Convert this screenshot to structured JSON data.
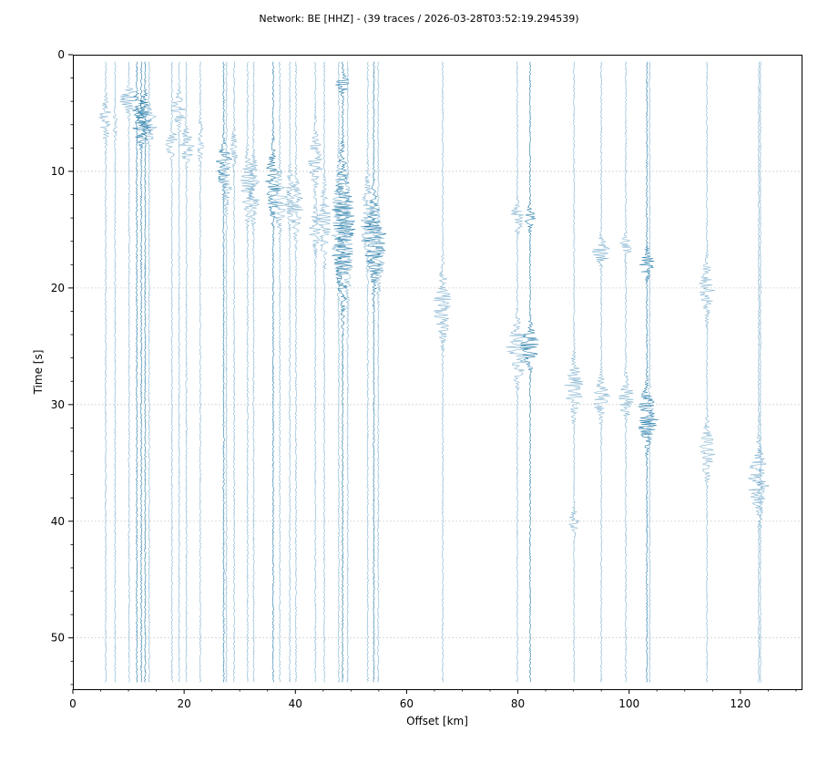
{
  "chart_data": {
    "type": "line",
    "title": "Network: BE [HHZ] - (39 traces / 2026-03-28T03:52:19.294539)",
    "xlabel": "Offset [km]",
    "ylabel": "Time [s]",
    "xlim": [
      0,
      131
    ],
    "ylim": [
      0,
      54.4
    ],
    "y_inverted": true,
    "grid": "horizontal",
    "x_ticks": [
      "0",
      "20",
      "40",
      "60",
      "80",
      "100",
      "120"
    ],
    "y_ticks": [
      "0",
      "10",
      "20",
      "30",
      "40",
      "50"
    ],
    "colors": {
      "dark": "#1f77a4",
      "light": "#7fb1cf",
      "grid": "#d0d0d0"
    },
    "traces": [
      {
        "offset": 5.9,
        "energy": [
          [
            5.5,
            1.6,
            1.0
          ]
        ],
        "tone": "light"
      },
      {
        "offset": 10.1,
        "energy": [
          [
            3.8,
            1.0,
            1.5
          ]
        ],
        "tone": "light"
      },
      {
        "offset": 11.5,
        "energy": [
          [
            4.5,
            0.8,
            1.6
          ]
        ],
        "tone": "dark"
      },
      {
        "offset": 12.3,
        "energy": [
          [
            6.5,
            1.0,
            1.6
          ]
        ],
        "tone": "dark"
      },
      {
        "offset": 13.0,
        "energy": [
          [
            5.0,
            1.2,
            1.5
          ]
        ],
        "tone": "dark"
      },
      {
        "offset": 13.7,
        "energy": [
          [
            6.0,
            1.2,
            1.4
          ]
        ],
        "tone": "light"
      },
      {
        "offset": 17.8,
        "energy": [
          [
            7.5,
            1.0,
            1.2
          ]
        ],
        "tone": "light"
      },
      {
        "offset": 19.1,
        "energy": [
          [
            4.8,
            1.3,
            1.2
          ]
        ],
        "tone": "light"
      },
      {
        "offset": 20.4,
        "energy": [
          [
            7.8,
            1.2,
            1.4
          ]
        ],
        "tone": "light"
      },
      {
        "offset": 22.9,
        "energy": [
          [
            7.5,
            1.5,
            0.6
          ]
        ],
        "tone": "light"
      },
      {
        "offset": 27.1,
        "energy": [
          [
            9.5,
            1.4,
            1.6
          ]
        ],
        "tone": "dark"
      },
      {
        "offset": 27.6,
        "energy": [
          [
            11.0,
            1.8,
            0.9
          ]
        ],
        "tone": "light"
      },
      {
        "offset": 29.0,
        "energy": [
          [
            8.0,
            1.5,
            0.5
          ]
        ],
        "tone": "light"
      },
      {
        "offset": 31.4,
        "energy": [
          [
            11.5,
            2.2,
            1.3
          ]
        ],
        "tone": "light"
      },
      {
        "offset": 32.5,
        "energy": [
          [
            11.5,
            2.5,
            1.0
          ]
        ],
        "tone": "light"
      },
      {
        "offset": 36.0,
        "energy": [
          [
            11.0,
            2.5,
            1.3
          ]
        ],
        "tone": "dark"
      },
      {
        "offset": 37.2,
        "energy": [
          [
            12.5,
            2.0,
            1.3
          ]
        ],
        "tone": "light"
      },
      {
        "offset": 39.0,
        "energy": [
          [
            12.0,
            2.0,
            0.7
          ]
        ],
        "tone": "light"
      },
      {
        "offset": 40.1,
        "energy": [
          [
            13.0,
            2.0,
            1.2
          ]
        ],
        "tone": "light"
      },
      {
        "offset": 43.6,
        "energy": [
          [
            9.0,
            2.0,
            1.3
          ],
          [
            15.0,
            1.5,
            1.0
          ]
        ],
        "tone": "light"
      },
      {
        "offset": 45.2,
        "energy": [
          [
            14.5,
            2.5,
            1.1
          ]
        ],
        "tone": "light"
      },
      {
        "offset": 47.8,
        "energy": [
          [
            15.0,
            4.0,
            1.3
          ]
        ],
        "tone": "light"
      },
      {
        "offset": 48.5,
        "energy": [
          [
            2.5,
            0.8,
            1.2
          ],
          [
            15.0,
            5.0,
            2.0
          ]
        ],
        "tone": "dark"
      },
      {
        "offset": 49.4,
        "energy": [
          [
            16.0,
            4.0,
            1.0
          ]
        ],
        "tone": "light"
      },
      {
        "offset": 53.0,
        "energy": [
          [
            14.0,
            3.0,
            1.1
          ]
        ],
        "tone": "light"
      },
      {
        "offset": 54.1,
        "energy": [
          [
            16.0,
            3.0,
            2.0
          ]
        ],
        "tone": "dark"
      },
      {
        "offset": 54.9,
        "energy": [
          [
            17.0,
            2.5,
            1.2
          ]
        ],
        "tone": "light"
      },
      {
        "offset": 66.5,
        "energy": [
          [
            21.5,
            2.5,
            1.5
          ]
        ],
        "tone": "light"
      },
      {
        "offset": 79.9,
        "energy": [
          [
            25.5,
            2.0,
            2.0
          ],
          [
            14.0,
            1.0,
            1.2
          ]
        ],
        "tone": "light"
      },
      {
        "offset": 82.2,
        "energy": [
          [
            25.0,
            1.5,
            1.6
          ],
          [
            14.0,
            0.8,
            1.0
          ]
        ],
        "tone": "dark"
      },
      {
        "offset": 90.1,
        "energy": [
          [
            28.5,
            2.0,
            1.5
          ],
          [
            40.0,
            1.0,
            0.8
          ]
        ],
        "tone": "light"
      },
      {
        "offset": 95.0,
        "energy": [
          [
            17.0,
            1.0,
            1.5
          ],
          [
            29.5,
            1.5,
            1.5
          ]
        ],
        "tone": "light"
      },
      {
        "offset": 99.4,
        "energy": [
          [
            16.5,
            0.8,
            1.0
          ],
          [
            29.5,
            1.5,
            1.3
          ]
        ],
        "tone": "light"
      },
      {
        "offset": 103.2,
        "energy": [
          [
            18.0,
            1.0,
            1.2
          ],
          [
            31.0,
            2.0,
            1.8
          ]
        ],
        "tone": "dark"
      },
      {
        "offset": 103.7,
        "energy": [
          [
            31.0,
            2.0,
            0.6
          ]
        ],
        "tone": "light"
      },
      {
        "offset": 114.0,
        "energy": [
          [
            20.0,
            2.0,
            1.2
          ],
          [
            34.0,
            2.0,
            1.3
          ]
        ],
        "tone": "light"
      },
      {
        "offset": 123.3,
        "energy": [
          [
            36.5,
            2.5,
            1.8
          ]
        ],
        "tone": "light"
      },
      {
        "offset": 7.6,
        "energy": [
          [
            6.0,
            1.0,
            0.3
          ]
        ],
        "tone": "light"
      },
      {
        "offset": 123.6,
        "energy": [
          [
            38.0,
            2.0,
            0.4
          ]
        ],
        "tone": "light"
      }
    ]
  }
}
